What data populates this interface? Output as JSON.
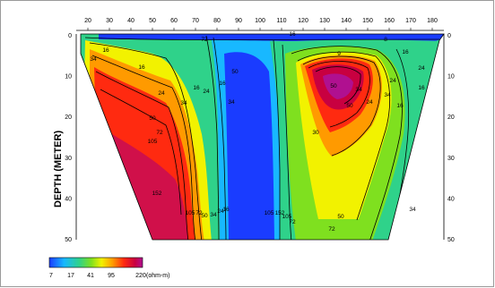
{
  "figure": {
    "y_axis_title": "DEPTH (METER)",
    "x_ticks": [
      "20",
      "30",
      "40",
      "50",
      "60",
      "70",
      "80",
      "90",
      "100",
      "110",
      "120",
      "130",
      "140",
      "150",
      "160",
      "170",
      "180"
    ],
    "depth_ticks_left": [
      "0",
      "10",
      "20",
      "30",
      "40",
      "50"
    ],
    "depth_ticks_right": [
      "0",
      "10",
      "20",
      "30",
      "40",
      "50"
    ],
    "contour_labels": [
      "16",
      "16",
      "34",
      "24",
      "34",
      "50",
      "72",
      "105",
      "152",
      "105",
      "72",
      "50",
      "34",
      "24",
      "16",
      "34",
      "24",
      "16",
      "16",
      "50",
      "72",
      "105",
      "152",
      "105",
      "72",
      "50",
      "30",
      "50",
      "34",
      "16",
      "16",
      "24",
      "34",
      "24",
      "16",
      "24",
      "50",
      "72",
      "34",
      "9",
      "8",
      "16"
    ],
    "colorbar": {
      "labels": [
        "7",
        "17",
        "41",
        "95",
        "220"
      ],
      "unit": "(ohm-m)",
      "colors": [
        "#1a3cff",
        "#18b8ff",
        "#2fd28a",
        "#7fe01f",
        "#f2f200",
        "#ff9a00",
        "#ff2a10",
        "#c80040",
        "#b01090"
      ]
    }
  }
}
